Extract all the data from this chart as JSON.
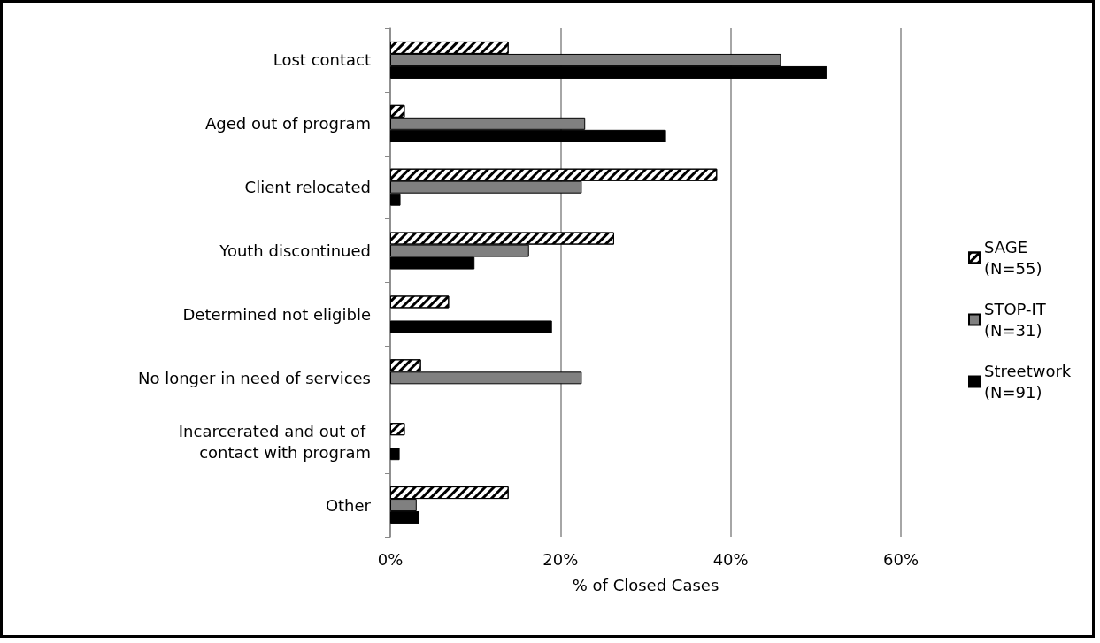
{
  "chart_data": {
    "type": "bar",
    "orientation": "horizontal",
    "xlabel": "% of Closed Cases",
    "categories": [
      "Lost contact",
      "Aged out of program",
      "Client relocated",
      "Youth discontinued",
      "Determined not eligible",
      "No longer in need of services",
      "Incarcerated and out of contact with program",
      "Other"
    ],
    "series": [
      {
        "name": "SAGE (N=55)",
        "color": "#ffffff",
        "values": [
          13.9,
          1.7,
          38.4,
          26.3,
          6.9,
          3.6,
          1.7,
          13.9
        ]
      },
      {
        "name": "STOP-IT (N=31)",
        "color": "#808080",
        "values": [
          45.9,
          22.9,
          22.5,
          16.3,
          0,
          22.5,
          0,
          3.1
        ]
      },
      {
        "name": "Streetwork (N=91)",
        "color": "#000000",
        "values": [
          51.3,
          32.4,
          1.2,
          9.9,
          19.0,
          0,
          1.1,
          3.4
        ]
      }
    ],
    "xlim": [
      0,
      60
    ],
    "xticks": [
      {
        "value": 0,
        "label": "0%"
      },
      {
        "value": 20,
        "label": "20%"
      },
      {
        "value": 40,
        "label": "40%"
      },
      {
        "value": 60,
        "label": "60%"
      }
    ],
    "grid": "x",
    "legend": "right"
  }
}
